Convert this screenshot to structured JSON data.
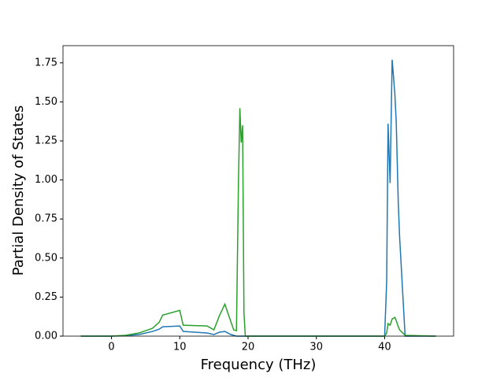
{
  "chart_data": {
    "type": "line",
    "xlabel": "Frequency (THz)",
    "ylabel": "Partial Density of States",
    "x": [
      -4.5,
      0,
      2,
      4,
      6,
      7,
      7.5,
      10,
      10.5,
      14,
      15,
      15.8,
      16.6,
      17.5,
      17.9,
      18.3,
      18.6,
      18.8,
      19.0,
      19.2,
      19.4,
      19.6,
      40,
      40.3,
      40.5,
      40.8,
      41.1,
      41.5,
      41.7,
      42,
      42.2,
      43,
      47.5
    ],
    "series": [
      {
        "color": "#1f77b4",
        "values": [
          0,
          0,
          0.003,
          0.01,
          0.03,
          0.045,
          0.06,
          0.065,
          0.03,
          0.02,
          0.01,
          0.025,
          0.03,
          0.01,
          0.005,
          0,
          0,
          0,
          0,
          0,
          0,
          0,
          0,
          0.35,
          1.36,
          0.98,
          1.77,
          1.55,
          1.37,
          0.85,
          0.63,
          0,
          0
        ]
      },
      {
        "color": "#2ca02c",
        "values": [
          0,
          0,
          0.005,
          0.02,
          0.05,
          0.09,
          0.135,
          0.165,
          0.07,
          0.065,
          0.04,
          0.13,
          0.205,
          0.09,
          0.04,
          0.035,
          1.0,
          1.46,
          1.24,
          1.35,
          0.15,
          0,
          0,
          0.02,
          0.08,
          0.07,
          0.11,
          0.12,
          0.1,
          0.06,
          0.04,
          0.005,
          0
        ]
      }
    ],
    "xlim": [
      -7.1,
      50.1
    ],
    "xticks": [
      0,
      10,
      20,
      30,
      40
    ],
    "ylim": [
      0,
      1.86
    ],
    "yticks": [
      {
        "value": 0,
        "label": "0.00"
      },
      {
        "value": 0.25,
        "label": "0.25"
      },
      {
        "value": 0.5,
        "label": "0.50"
      },
      {
        "value": 0.75,
        "label": "0.75"
      },
      {
        "value": 1.0,
        "label": "1.00"
      },
      {
        "value": 1.25,
        "label": "1.25"
      },
      {
        "value": 1.5,
        "label": "1.50"
      },
      {
        "value": 1.75,
        "label": "1.75"
      }
    ]
  }
}
